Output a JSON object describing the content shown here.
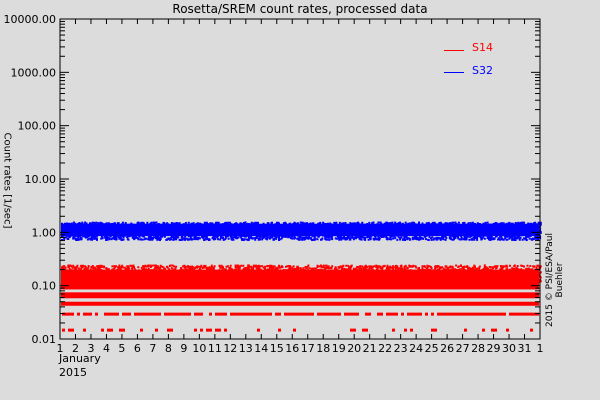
{
  "chart_data": {
    "type": "scatter",
    "title": "Rosetta/SREM count rates, processed data",
    "xlabel": "January 2015",
    "ylabel": "Count rates [1/sec]",
    "yscale": "log",
    "ylim": [
      0.01,
      10000
    ],
    "ytick_labels": [
      "10000.00",
      "1000.00",
      "100.00",
      "10.00",
      "1.00",
      "0.10",
      "0.01"
    ],
    "ytick_values": [
      10000,
      1000,
      100,
      10,
      1,
      0.1,
      0.01
    ],
    "xtick_labels": [
      "1",
      "2",
      "3",
      "4",
      "5",
      "6",
      "7",
      "8",
      "9",
      "10",
      "11",
      "12",
      "13",
      "14",
      "15",
      "16",
      "17",
      "18",
      "19",
      "20",
      "21",
      "22",
      "23",
      "24",
      "25",
      "26",
      "27",
      "28",
      "29",
      "30",
      "31",
      "1"
    ],
    "x_month_label": "January",
    "x_year_label": "2015",
    "grid": false,
    "legend_position": "upper right",
    "series": [
      {
        "name": "S14",
        "color": "#ff0000",
        "description": "Dense band of points between ~0.05 and ~0.25 1/sec with discrete quantized levels at ~0.045, ~0.03 and ~0.015 1/sec",
        "band_min": 0.04,
        "band_max": 0.25,
        "quantized_levels": [
          0.015,
          0.03,
          0.045,
          0.065,
          0.08
        ],
        "typical_value": 0.12
      },
      {
        "name": "S32",
        "color": "#0000ff",
        "description": "Dense band of points between ~0.8 and ~1.5 1/sec",
        "band_min": 0.75,
        "band_max": 1.6,
        "typical_value": 1.15
      }
    ],
    "credit": "2015 © PSI/ESA/Paul Buehler"
  },
  "legend": [
    {
      "label": "S14",
      "color": "#ff0000"
    },
    {
      "label": "S32",
      "color": "#0000ff"
    }
  ]
}
